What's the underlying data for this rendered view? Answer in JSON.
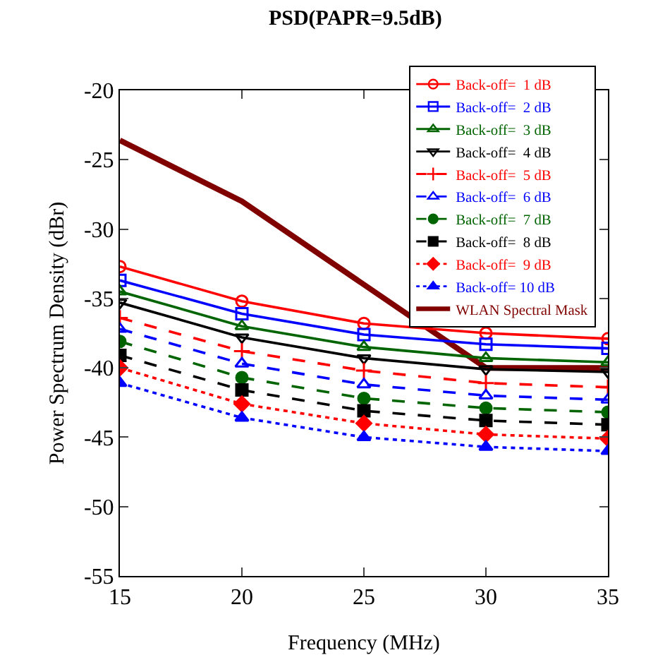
{
  "chart_data": {
    "type": "line",
    "title": "PSD(PAPR=9.5dB)",
    "xlabel": "Frequency (MHz)",
    "ylabel": "Power Spectrum Density (dBr)",
    "x": [
      15,
      20,
      25,
      30,
      35
    ],
    "xlim": [
      15,
      35
    ],
    "xticks": [
      15,
      20,
      25,
      30,
      35
    ],
    "ylim": [
      -55,
      -20
    ],
    "yticks": [
      -55,
      -50,
      -45,
      -40,
      -35,
      -30,
      -25,
      -20
    ],
    "grid": false,
    "legend": "top right",
    "series": [
      {
        "name": "Back-off=  1 dB",
        "color": "#ff0000",
        "marker": "circle-open",
        "line_style": "solid",
        "values": [
          -32.7,
          -35.2,
          -36.8,
          -37.5,
          -37.9
        ]
      },
      {
        "name": "Back-off=  2 dB",
        "color": "#0000ff",
        "marker": "square-open",
        "line_style": "solid",
        "values": [
          -33.7,
          -36.1,
          -37.6,
          -38.3,
          -38.6
        ]
      },
      {
        "name": "Back-off=  3 dB",
        "color": "#006400",
        "marker": "triangle-up-open",
        "line_style": "solid",
        "values": [
          -34.5,
          -37.0,
          -38.5,
          -39.3,
          -39.6
        ]
      },
      {
        "name": "Back-off=  4 dB",
        "color": "#000000",
        "marker": "triangle-down-open",
        "line_style": "solid",
        "values": [
          -35.3,
          -37.8,
          -39.3,
          -40.1,
          -40.3
        ]
      },
      {
        "name": "Back-off=  5 dB",
        "color": "#ff0000",
        "marker": "cross-thin",
        "line_style": "dashed",
        "values": [
          -36.4,
          -38.8,
          -40.2,
          -41.1,
          -41.4
        ]
      },
      {
        "name": "Back-off=  6 dB",
        "color": "#0000ff",
        "marker": "triangle-up-open",
        "line_style": "dashed",
        "values": [
          -37.2,
          -39.7,
          -41.2,
          -42.0,
          -42.3
        ]
      },
      {
        "name": "Back-off=  7 dB",
        "color": "#006400",
        "marker": "circle",
        "line_style": "dashed",
        "values": [
          -38.1,
          -40.7,
          -42.2,
          -42.9,
          -43.2
        ]
      },
      {
        "name": "Back-off=  8 dB",
        "color": "#000000",
        "marker": "square",
        "line_style": "dashed",
        "values": [
          -39.1,
          -41.6,
          -43.1,
          -43.8,
          -44.1
        ]
      },
      {
        "name": "Back-off=  9 dB",
        "color": "#ff0000",
        "marker": "diamond",
        "line_style": "dotted",
        "values": [
          -40.0,
          -42.6,
          -44.0,
          -44.8,
          -45.1
        ]
      },
      {
        "name": "Back-off= 10 dB",
        "color": "#0000ff",
        "marker": "triangle-up",
        "line_style": "dotted",
        "values": [
          -41.1,
          -43.6,
          -45.0,
          -45.7,
          -46.0
        ]
      },
      {
        "name": "WLAN Spectral Mask",
        "color": "#800000",
        "marker": "none",
        "line_style": "solid",
        "values": [
          -23.6,
          -28.0,
          null,
          -40.0,
          -40.0
        ]
      }
    ]
  }
}
